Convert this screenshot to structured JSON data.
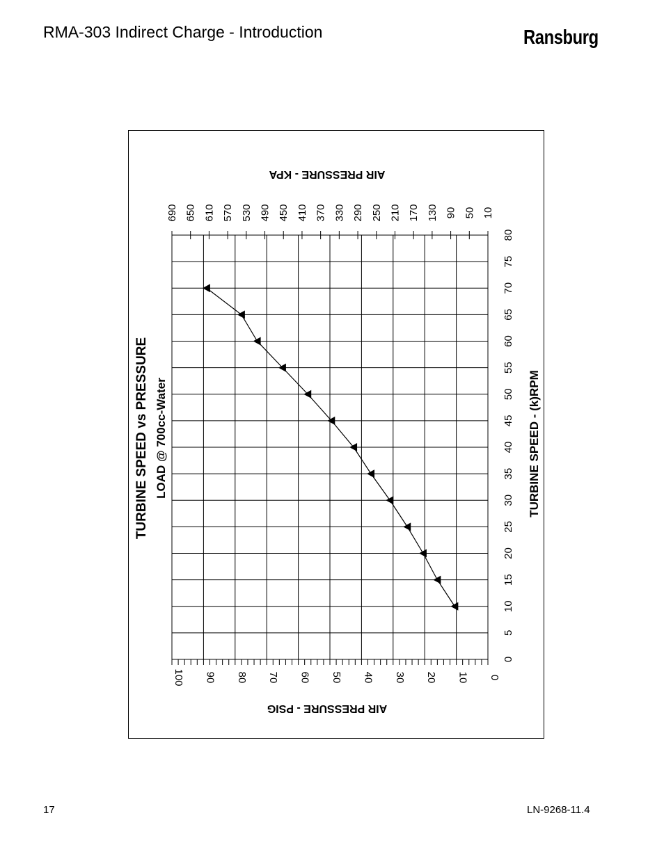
{
  "header": {
    "title": "RMA-303 Indirect Charge - Introduction",
    "brand": "Ransburg"
  },
  "footer": {
    "page_number": "17",
    "doc_number": "LN-9268-11.4"
  },
  "chart_data": {
    "type": "line",
    "title_line1": "TURBINE SPEED vs PRESSURE",
    "title_line2": "LOAD @ 700cc-Water",
    "orientation": "rotated 90 degrees counter-clockwise",
    "xlabel": "TURBINE SPEED - (k)RPM",
    "ylabel_bottom": "AIR PRESSURE - PSIG",
    "ylabel_top": "AIR PRESSURE - KPA",
    "speed_ticks": [
      "0",
      "5",
      "10",
      "15",
      "20",
      "25",
      "30",
      "35",
      "40",
      "45",
      "50",
      "55",
      "60",
      "65",
      "70",
      "75",
      "80"
    ],
    "psig_ticks": [
      "100",
      "90",
      "80",
      "70",
      "60",
      "50",
      "40",
      "30",
      "20",
      "10",
      "0"
    ],
    "kpa_ticks": [
      "690",
      "650",
      "610",
      "570",
      "530",
      "490",
      "450",
      "410",
      "370",
      "330",
      "290",
      "250",
      "210",
      "170",
      "130",
      "90",
      "50",
      "10"
    ],
    "xlim": [
      0,
      80
    ],
    "ylim_psig": [
      0,
      100
    ],
    "grid": true,
    "marker": "triangle",
    "series": [
      {
        "x": [
          10,
          15,
          20,
          25,
          30,
          35,
          40,
          45,
          50,
          55,
          60,
          65,
          70
        ],
        "y": [
          10.5,
          16,
          20.5,
          25.5,
          31,
          37,
          42.5,
          49.5,
          57,
          65,
          73,
          78,
          89
        ]
      }
    ]
  }
}
